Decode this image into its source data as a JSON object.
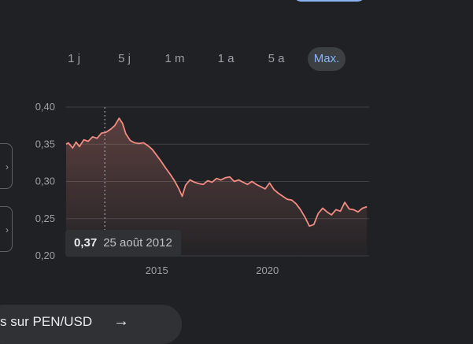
{
  "range_buttons": [
    {
      "label": "1 j",
      "active": false
    },
    {
      "label": "5 j",
      "active": false
    },
    {
      "label": "1 m",
      "active": false
    },
    {
      "label": "1 a",
      "active": false
    },
    {
      "label": "5 a",
      "active": false
    },
    {
      "label": "Max.",
      "active": true
    }
  ],
  "tooltip": {
    "value": "0,37",
    "date": "25 août 2012"
  },
  "more_link": {
    "label": "s sur PEN/USD",
    "arrow": "→"
  },
  "colors": {
    "line": "#f28b82",
    "accent": "#8ab4f8",
    "grid": "#3c4043",
    "cursor": "#9aa0a6"
  },
  "chart_data": {
    "type": "line",
    "title": "",
    "xlabel": "",
    "ylabel": "",
    "ylim": [
      0.2,
      0.4
    ],
    "xlim": [
      2010.9,
      2024.6
    ],
    "y_ticks": [
      "0,40",
      "0,35",
      "0,30",
      "0,25",
      "0,20"
    ],
    "x_ticks": [
      "2015",
      "2020"
    ],
    "grid": true,
    "cursor": {
      "x": 2012.65,
      "y": 0.37
    },
    "series": [
      {
        "x": [
          2010.9,
          2011.0,
          2011.2,
          2011.35,
          2011.5,
          2011.7,
          2011.9,
          2012.1,
          2012.3,
          2012.5,
          2012.7,
          2012.9,
          2013.1,
          2013.3,
          2013.45,
          2013.6,
          2013.8,
          2014.0,
          2014.2,
          2014.4,
          2014.6,
          2014.8,
          2015.0,
          2015.2,
          2015.4,
          2015.6,
          2015.8,
          2016.0,
          2016.15,
          2016.3,
          2016.5,
          2016.7,
          2016.9,
          2017.1,
          2017.3,
          2017.5,
          2017.7,
          2017.9,
          2018.1,
          2018.3,
          2018.5,
          2018.7,
          2018.9,
          2019.1,
          2019.3,
          2019.5,
          2019.7,
          2019.9,
          2020.1,
          2020.3,
          2020.5,
          2020.7,
          2020.9,
          2021.1,
          2021.3,
          2021.5,
          2021.7,
          2021.9,
          2022.1,
          2022.3,
          2022.5,
          2022.7,
          2022.9,
          2023.1,
          2023.3,
          2023.5,
          2023.7,
          2023.9,
          2024.1,
          2024.3,
          2024.5
        ],
        "y": [
          0.35,
          0.352,
          0.345,
          0.353,
          0.347,
          0.356,
          0.354,
          0.36,
          0.358,
          0.365,
          0.366,
          0.37,
          0.375,
          0.385,
          0.378,
          0.364,
          0.355,
          0.352,
          0.351,
          0.352,
          0.348,
          0.343,
          0.335,
          0.327,
          0.318,
          0.31,
          0.301,
          0.29,
          0.28,
          0.295,
          0.302,
          0.299,
          0.297,
          0.296,
          0.301,
          0.299,
          0.304,
          0.302,
          0.305,
          0.306,
          0.3,
          0.302,
          0.299,
          0.296,
          0.3,
          0.296,
          0.293,
          0.29,
          0.298,
          0.289,
          0.284,
          0.28,
          0.276,
          0.275,
          0.27,
          0.262,
          0.252,
          0.24,
          0.242,
          0.257,
          0.264,
          0.259,
          0.255,
          0.262,
          0.26,
          0.272,
          0.263,
          0.262,
          0.259,
          0.264,
          0.266
        ]
      }
    ]
  }
}
